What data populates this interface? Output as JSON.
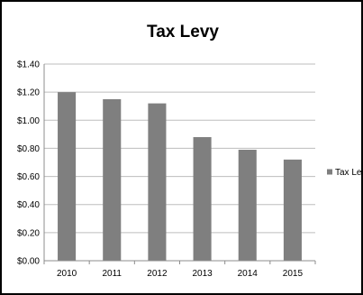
{
  "chart_data": {
    "type": "bar",
    "title": "Tax Levy",
    "categories": [
      "2010",
      "2011",
      "2012",
      "2013",
      "2014",
      "2015"
    ],
    "series": [
      {
        "name": "Tax Levy",
        "values": [
          1.2,
          1.15,
          1.12,
          0.88,
          0.79,
          0.72
        ]
      }
    ],
    "yticks": [
      "$0.00",
      "$0.20",
      "$0.40",
      "$0.60",
      "$0.80",
      "$1.00",
      "$1.20",
      "$1.40"
    ],
    "ylim": [
      0,
      1.4
    ],
    "grid": true,
    "legend_position": "right",
    "colors": {
      "bar": "#7f7f7f",
      "grid": "#bdbdbd",
      "axis": "#8c8c8c",
      "border": "#000000",
      "text": "#000000"
    }
  }
}
